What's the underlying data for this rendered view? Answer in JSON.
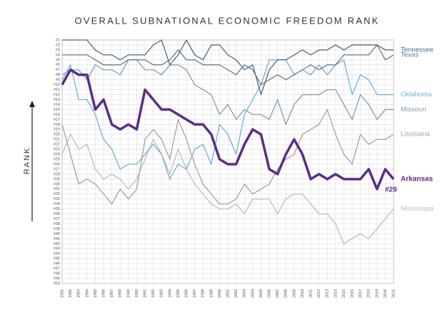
{
  "chart_data": {
    "type": "line",
    "title": "OVERALL SUBNATIONAL ECONOMIC FREEDOM RANK",
    "y_label": "RANK",
    "annotation": {
      "text": "#29",
      "series": "Arkansas"
    },
    "categories": [
      "1981",
      "1982",
      "1983",
      "1984",
      "1985",
      "1986",
      "1987",
      "1988",
      "1989",
      "1990",
      "1991",
      "1992",
      "1993",
      "1994",
      "1995",
      "1996",
      "1997",
      "1998",
      "1999",
      "2000",
      "2001",
      "2002",
      "2003",
      "2004",
      "2005",
      "2006",
      "2007",
      "2008",
      "2009",
      "2010",
      "2011",
      "2012",
      "2013",
      "2014",
      "2015",
      "2016",
      "2017",
      "2018",
      "2019",
      "2020",
      "2021"
    ],
    "ylim": [
      1,
      50
    ],
    "y_inverted": true,
    "grid": true,
    "legend": "end-labels",
    "yticks": [
      {
        "value": 1,
        "label": "#1"
      },
      {
        "value": 2,
        "label": "#2"
      },
      {
        "value": 3,
        "label": "#3"
      },
      {
        "value": 4,
        "label": "#4"
      },
      {
        "value": 5,
        "label": "#5"
      },
      {
        "value": 6,
        "label": "#6"
      },
      {
        "value": 7,
        "label": "#7"
      },
      {
        "value": 8,
        "label": "#8"
      },
      {
        "value": 9,
        "label": "#9"
      },
      {
        "value": 10,
        "label": "#10"
      },
      {
        "value": 11,
        "label": "#11"
      },
      {
        "value": 12,
        "label": "#12"
      },
      {
        "value": 13,
        "label": "#13"
      },
      {
        "value": 14,
        "label": "#14"
      },
      {
        "value": 15,
        "label": "#15"
      },
      {
        "value": 16,
        "label": "#16"
      },
      {
        "value": 17,
        "label": "#17"
      },
      {
        "value": 18,
        "label": "#18"
      },
      {
        "value": 19,
        "label": "#19"
      },
      {
        "value": 20,
        "label": "#20"
      },
      {
        "value": 21,
        "label": "#21"
      },
      {
        "value": 22,
        "label": "#22"
      },
      {
        "value": 23,
        "label": "#23"
      },
      {
        "value": 24,
        "label": "#24"
      },
      {
        "value": 25,
        "label": "#25"
      },
      {
        "value": 26,
        "label": "#26"
      },
      {
        "value": 27,
        "label": "#27"
      },
      {
        "value": 28,
        "label": "#28"
      },
      {
        "value": 29,
        "label": "#29"
      },
      {
        "value": 30,
        "label": "#30"
      },
      {
        "value": 31,
        "label": "#31"
      },
      {
        "value": 32,
        "label": "#32"
      },
      {
        "value": 33,
        "label": "#33"
      },
      {
        "value": 34,
        "label": "#34"
      },
      {
        "value": 35,
        "label": "#35"
      },
      {
        "value": 36,
        "label": "#36"
      },
      {
        "value": 37,
        "label": "#37"
      },
      {
        "value": 38,
        "label": "#38"
      },
      {
        "value": 39,
        "label": "#39"
      },
      {
        "value": 40,
        "label": "#40"
      },
      {
        "value": 41,
        "label": "#41"
      },
      {
        "value": 42,
        "label": "#42"
      },
      {
        "value": 43,
        "label": "#43"
      },
      {
        "value": 44,
        "label": "#44"
      },
      {
        "value": 45,
        "label": "#45"
      },
      {
        "value": 46,
        "label": "#46"
      },
      {
        "value": 47,
        "label": "#47"
      },
      {
        "value": 48,
        "label": "#48"
      },
      {
        "value": 49,
        "label": "#49"
      },
      {
        "value": 50,
        "label": "#50"
      }
    ],
    "series": [
      {
        "name": "Mississippi",
        "color": "#bdbdbd",
        "width": 1.3,
        "values": [
          24,
          20,
          23,
          22,
          27,
          29,
          28,
          29,
          31,
          29,
          25,
          21,
          24,
          28,
          23,
          27,
          30,
          32,
          34,
          35,
          35,
          34,
          36,
          33,
          33,
          33,
          36,
          33,
          32,
          32,
          34,
          36,
          36,
          38,
          42,
          41,
          40,
          41,
          39,
          37,
          35
        ]
      },
      {
        "name": "Louisiana",
        "color": "#a3a3a3",
        "width": 1.3,
        "values": [
          18,
          24,
          30,
          29,
          30,
          32,
          34,
          31,
          33,
          31,
          21,
          19,
          21,
          25,
          17,
          21,
          26,
          30,
          32,
          34,
          34,
          33,
          30,
          32,
          31,
          30,
          27,
          25,
          24,
          20,
          19,
          18,
          15,
          20,
          24,
          26,
          20,
          22,
          21,
          21,
          20
        ]
      },
      {
        "name": "Missouri",
        "color": "#7f9db5",
        "width": 1.3,
        "values": [
          8,
          7,
          7,
          9,
          6,
          7,
          7,
          8,
          5,
          5,
          7,
          7,
          8,
          6,
          6,
          7,
          10,
          11,
          12,
          16,
          14,
          17,
          15,
          16,
          16,
          17,
          13,
          18,
          14,
          12,
          12,
          12,
          11,
          11,
          14,
          17,
          12,
          14,
          17,
          15,
          15
        ]
      },
      {
        "name": "Oklahoma",
        "color": "#6cb3d3",
        "width": 1.3,
        "values": [
          9,
          6,
          13,
          13,
          16,
          21,
          23,
          27,
          26,
          26,
          24,
          22,
          24,
          29,
          26,
          27,
          23,
          22,
          26,
          18,
          20,
          24,
          16,
          13,
          10,
          5,
          5,
          5,
          8,
          7,
          8,
          6,
          8,
          6,
          5,
          12,
          8,
          9,
          12,
          12,
          12
        ]
      },
      {
        "name": "Texas",
        "color": "#6a7a86",
        "width": 1.3,
        "values": [
          4,
          4,
          4,
          4,
          5,
          6,
          6,
          6,
          5,
          5,
          5,
          6,
          6,
          5,
          3,
          5,
          5,
          6,
          6,
          6,
          7,
          8,
          6,
          7,
          10,
          9,
          8,
          9,
          8,
          7,
          6,
          7,
          6,
          6,
          4,
          4,
          4,
          4,
          2,
          5,
          4
        ]
      },
      {
        "name": "Tennessee",
        "color": "#4a6b82",
        "width": 1.3,
        "values": [
          1,
          1,
          1,
          1,
          3,
          4,
          4,
          5,
          4,
          4,
          4,
          2,
          1,
          6,
          4,
          1,
          4,
          5,
          2,
          2,
          4,
          5,
          7,
          6,
          12,
          7,
          5,
          5,
          4,
          3,
          4,
          3,
          3,
          2,
          3,
          2,
          2,
          2,
          2,
          3,
          3
        ]
      },
      {
        "name": "Arkansas",
        "color": "#5b2d8a",
        "width": 3.5,
        "values": [
          10,
          7,
          8,
          8,
          15,
          13,
          18,
          19,
          18,
          19,
          11,
          13,
          15,
          15,
          16,
          17,
          18,
          18,
          20,
          25,
          26,
          26,
          22,
          19,
          20,
          27,
          28,
          24,
          21,
          24,
          29,
          28,
          29,
          28,
          29,
          29,
          29,
          27,
          31,
          27,
          29
        ]
      }
    ]
  }
}
